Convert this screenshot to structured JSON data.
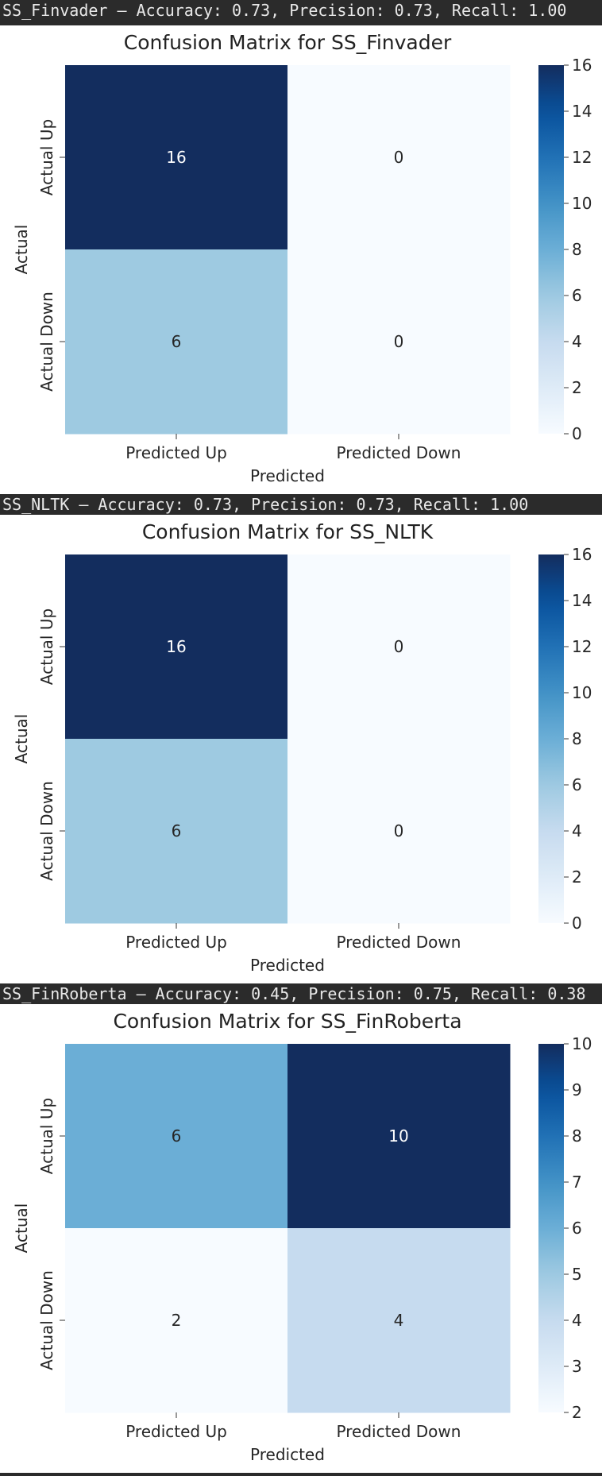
{
  "output_headers": [
    "SS_Finvader — Accuracy: 0.73, Precision: 0.73, Recall: 1.00",
    "SS_NLTK — Accuracy: 0.73, Precision: 0.73, Recall: 1.00",
    "SS_FinRoberta — Accuracy: 0.45, Precision: 0.75, Recall: 0.38"
  ],
  "chart_data": [
    {
      "type": "heatmap",
      "title": "Confusion Matrix for SS_Finvader",
      "xlabel": "Predicted",
      "ylabel": "Actual",
      "x_categories": [
        "Predicted Up",
        "Predicted Down"
      ],
      "y_categories": [
        "Actual Up",
        "Actual Down"
      ],
      "values": [
        [
          16,
          0
        ],
        [
          6,
          0
        ]
      ],
      "colormap": "Blues",
      "colorbar": {
        "min": 0,
        "max": 16,
        "ticks": [
          0,
          2,
          4,
          6,
          8,
          10,
          12,
          14,
          16
        ]
      }
    },
    {
      "type": "heatmap",
      "title": "Confusion Matrix for SS_NLTK",
      "xlabel": "Predicted",
      "ylabel": "Actual",
      "x_categories": [
        "Predicted Up",
        "Predicted Down"
      ],
      "y_categories": [
        "Actual Up",
        "Actual Down"
      ],
      "values": [
        [
          16,
          0
        ],
        [
          6,
          0
        ]
      ],
      "colormap": "Blues",
      "colorbar": {
        "min": 0,
        "max": 16,
        "ticks": [
          0,
          2,
          4,
          6,
          8,
          10,
          12,
          14,
          16
        ]
      }
    },
    {
      "type": "heatmap",
      "title": "Confusion Matrix for SS_FinRoberta",
      "xlabel": "Predicted",
      "ylabel": "Actual",
      "x_categories": [
        "Predicted Up",
        "Predicted Down"
      ],
      "y_categories": [
        "Actual Up",
        "Actual Down"
      ],
      "values": [
        [
          6,
          10
        ],
        [
          2,
          4
        ]
      ],
      "colormap": "Blues",
      "colorbar": {
        "min": 2,
        "max": 10,
        "ticks": [
          2,
          3,
          4,
          5,
          6,
          7,
          8,
          9,
          10
        ]
      }
    }
  ]
}
